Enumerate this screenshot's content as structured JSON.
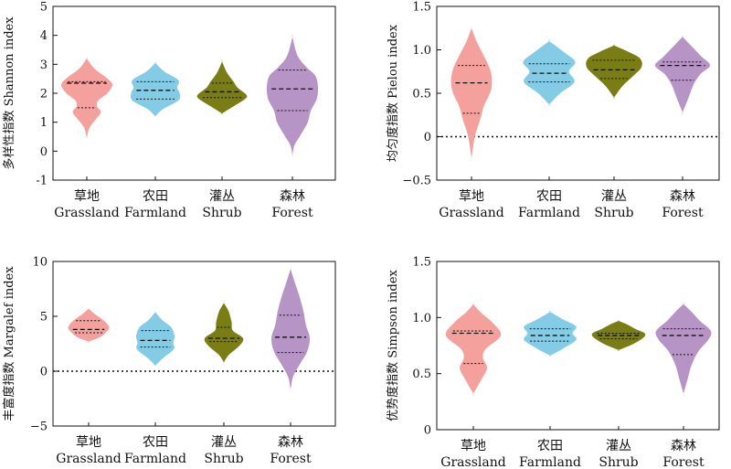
{
  "colors": {
    "grassland": "#f4a09c",
    "farmland": "#84cbe6",
    "shrub": "#7a7d13",
    "forest": "#b794c6"
  },
  "categories": [
    {
      "key": "grassland",
      "zh": "草地",
      "en": "Grassland"
    },
    {
      "key": "farmland",
      "zh": "农田",
      "en": "Farmland"
    },
    {
      "key": "shrub",
      "zh": "灌丛",
      "en": "Shrub"
    },
    {
      "key": "forest",
      "zh": "森林",
      "en": "Forest"
    }
  ],
  "chart_data": [
    {
      "type": "violin",
      "ylabel": "多样性指数 Shannon index",
      "ylim": [
        -1,
        5
      ],
      "yticks": [
        "-1",
        "0",
        "1",
        "2",
        "3",
        "4",
        "5"
      ],
      "zero_line": false,
      "series": [
        {
          "category": "草地 Grassland",
          "min": 0.45,
          "max": 3.2,
          "q1": 1.5,
          "median": 2.35,
          "q3": 2.4,
          "density": [
            [
              0.45,
              0
            ],
            [
              0.8,
              0.1
            ],
            [
              1.1,
              0.35
            ],
            [
              1.35,
              0.55
            ],
            [
              1.55,
              0.4
            ],
            [
              1.75,
              0.45
            ],
            [
              2.0,
              0.8
            ],
            [
              2.3,
              1.0
            ],
            [
              2.55,
              0.75
            ],
            [
              2.85,
              0.3
            ],
            [
              3.2,
              0
            ]
          ]
        },
        {
          "category": "农田 Farmland",
          "min": 1.2,
          "max": 3.05,
          "q1": 1.8,
          "median": 2.1,
          "q3": 2.4,
          "density": [
            [
              1.2,
              0
            ],
            [
              1.45,
              0.3
            ],
            [
              1.75,
              0.9
            ],
            [
              2.0,
              0.95
            ],
            [
              2.2,
              0.85
            ],
            [
              2.45,
              0.9
            ],
            [
              2.75,
              0.35
            ],
            [
              3.05,
              0
            ]
          ]
        },
        {
          "category": "灌丛 Shrub",
          "min": 1.3,
          "max": 3.1,
          "q1": 1.85,
          "median": 2.05,
          "q3": 2.35,
          "density": [
            [
              1.3,
              0
            ],
            [
              1.55,
              0.45
            ],
            [
              1.8,
              0.9
            ],
            [
              1.95,
              0.95
            ],
            [
              2.2,
              0.6
            ],
            [
              2.4,
              0.45
            ],
            [
              2.7,
              0.2
            ],
            [
              3.1,
              0
            ]
          ]
        },
        {
          "category": "森林 Forest",
          "min": -0.15,
          "max": 3.95,
          "q1": 1.4,
          "median": 2.15,
          "q3": 2.8,
          "density": [
            [
              -0.15,
              0
            ],
            [
              0.2,
              0.08
            ],
            [
              0.6,
              0.35
            ],
            [
              1.0,
              0.6
            ],
            [
              1.4,
              0.72
            ],
            [
              1.8,
              0.95
            ],
            [
              2.2,
              1.0
            ],
            [
              2.6,
              0.9
            ],
            [
              2.9,
              0.55
            ],
            [
              3.3,
              0.2
            ],
            [
              3.95,
              0
            ]
          ]
        }
      ]
    },
    {
      "type": "violin",
      "ylabel": "均匀度指数 Pielou index",
      "ylim": [
        -0.5,
        1.5
      ],
      "yticks": [
        "−0.5",
        "0",
        "0.5",
        "1.0",
        "1.5"
      ],
      "zero_line": true,
      "series": [
        {
          "category": "草地 Grassland",
          "min": -0.25,
          "max": 1.25,
          "q1": 0.27,
          "median": 0.62,
          "q3": 0.82,
          "density": [
            [
              -0.25,
              0
            ],
            [
              0.0,
              0.12
            ],
            [
              0.2,
              0.32
            ],
            [
              0.35,
              0.45
            ],
            [
              0.55,
              0.72
            ],
            [
              0.75,
              0.7
            ],
            [
              0.95,
              0.42
            ],
            [
              1.1,
              0.18
            ],
            [
              1.25,
              0
            ]
          ]
        },
        {
          "category": "农田 Farmland",
          "min": 0.37,
          "max": 1.1,
          "q1": 0.63,
          "median": 0.73,
          "q3": 0.84,
          "density": [
            [
              0.37,
              0
            ],
            [
              0.5,
              0.4
            ],
            [
              0.63,
              0.92
            ],
            [
              0.75,
              0.72
            ],
            [
              0.86,
              0.95
            ],
            [
              0.97,
              0.55
            ],
            [
              1.1,
              0
            ]
          ]
        },
        {
          "category": "灌丛 Shrub",
          "min": 0.45,
          "max": 1.05,
          "q1": 0.67,
          "median": 0.77,
          "q3": 0.88,
          "density": [
            [
              0.45,
              0
            ],
            [
              0.58,
              0.3
            ],
            [
              0.7,
              0.7
            ],
            [
              0.8,
              1.0
            ],
            [
              0.9,
              0.95
            ],
            [
              0.98,
              0.5
            ],
            [
              1.05,
              0
            ]
          ]
        },
        {
          "category": "森林 Forest",
          "min": 0.28,
          "max": 1.15,
          "q1": 0.65,
          "median": 0.82,
          "q3": 0.86,
          "density": [
            [
              0.28,
              0
            ],
            [
              0.45,
              0.22
            ],
            [
              0.6,
              0.4
            ],
            [
              0.72,
              0.65
            ],
            [
              0.82,
              1.0
            ],
            [
              0.92,
              0.7
            ],
            [
              1.05,
              0.3
            ],
            [
              1.15,
              0
            ]
          ]
        }
      ]
    },
    {
      "type": "violin",
      "ylabel": "丰富度指数 Margalef index",
      "ylim": [
        -5,
        10
      ],
      "yticks": [
        "−5",
        "0",
        "5",
        "10"
      ],
      "zero_line": true,
      "series": [
        {
          "category": "草地 Grassland",
          "min": 2.7,
          "max": 5.7,
          "q1": 3.5,
          "median": 3.8,
          "q3": 4.6,
          "density": [
            [
              2.7,
              0
            ],
            [
              3.1,
              0.45
            ],
            [
              3.6,
              0.7
            ],
            [
              4.0,
              0.8
            ],
            [
              4.6,
              0.6
            ],
            [
              5.1,
              0.3
            ],
            [
              5.7,
              0
            ]
          ]
        },
        {
          "category": "农田 Farmland",
          "min": 0.5,
          "max": 5.4,
          "q1": 2.2,
          "median": 2.8,
          "q3": 3.7,
          "density": [
            [
              0.5,
              0
            ],
            [
              1.2,
              0.3
            ],
            [
              2.0,
              0.72
            ],
            [
              2.6,
              0.7
            ],
            [
              3.2,
              0.75
            ],
            [
              4.0,
              0.62
            ],
            [
              4.7,
              0.25
            ],
            [
              5.4,
              0
            ]
          ]
        },
        {
          "category": "灌丛 Shrub",
          "min": 0.8,
          "max": 6.2,
          "q1": 2.7,
          "median": 3.0,
          "q3": 4.0,
          "density": [
            [
              0.8,
              0
            ],
            [
              1.5,
              0.2
            ],
            [
              2.3,
              0.6
            ],
            [
              3.0,
              0.75
            ],
            [
              3.7,
              0.35
            ],
            [
              4.5,
              0.3
            ],
            [
              5.5,
              0.18
            ],
            [
              6.2,
              0
            ]
          ]
        },
        {
          "category": "森林 Forest",
          "min": -1.7,
          "max": 9.3,
          "q1": 1.7,
          "median": 3.1,
          "q3": 5.1,
          "density": [
            [
              -1.7,
              0
            ],
            [
              -0.5,
              0.1
            ],
            [
              0.7,
              0.38
            ],
            [
              1.8,
              0.65
            ],
            [
              3.0,
              0.75
            ],
            [
              4.2,
              0.6
            ],
            [
              5.5,
              0.5
            ],
            [
              6.8,
              0.35
            ],
            [
              8.2,
              0.15
            ],
            [
              9.3,
              0
            ]
          ]
        }
      ]
    },
    {
      "type": "violin",
      "ylabel": "优势度指数 Simpson index",
      "ylim": [
        0,
        1.5
      ],
      "yticks": [
        "0",
        "0.5",
        "1.0",
        "1.5"
      ],
      "zero_line": false,
      "series": [
        {
          "category": "草地 Grassland",
          "min": 0.32,
          "max": 1.12,
          "q1": 0.59,
          "median": 0.86,
          "q3": 0.88,
          "density": [
            [
              0.32,
              0
            ],
            [
              0.45,
              0.3
            ],
            [
              0.55,
              0.5
            ],
            [
              0.64,
              0.35
            ],
            [
              0.72,
              0.45
            ],
            [
              0.84,
              1.0
            ],
            [
              0.95,
              0.72
            ],
            [
              1.05,
              0.25
            ],
            [
              1.12,
              0
            ]
          ]
        },
        {
          "category": "农田 Farmland",
          "min": 0.66,
          "max": 1.05,
          "q1": 0.79,
          "median": 0.84,
          "q3": 0.9,
          "density": [
            [
              0.66,
              0
            ],
            [
              0.72,
              0.45
            ],
            [
              0.8,
              0.95
            ],
            [
              0.86,
              0.82
            ],
            [
              0.92,
              0.95
            ],
            [
              0.98,
              0.5
            ],
            [
              1.05,
              0
            ]
          ]
        },
        {
          "category": "灌丛 Shrub",
          "min": 0.71,
          "max": 0.97,
          "q1": 0.81,
          "median": 0.84,
          "q3": 0.86,
          "density": [
            [
              0.71,
              0
            ],
            [
              0.76,
              0.5
            ],
            [
              0.82,
              0.9
            ],
            [
              0.86,
              0.95
            ],
            [
              0.9,
              0.6
            ],
            [
              0.94,
              0.3
            ],
            [
              0.97,
              0
            ]
          ]
        },
        {
          "category": "森林 Forest",
          "min": 0.32,
          "max": 1.12,
          "q1": 0.67,
          "median": 0.84,
          "q3": 0.9,
          "density": [
            [
              0.32,
              0
            ],
            [
              0.45,
              0.15
            ],
            [
              0.58,
              0.3
            ],
            [
              0.7,
              0.55
            ],
            [
              0.8,
              0.9
            ],
            [
              0.88,
              1.0
            ],
            [
              0.97,
              0.6
            ],
            [
              1.05,
              0.3
            ],
            [
              1.12,
              0
            ]
          ]
        }
      ]
    }
  ]
}
